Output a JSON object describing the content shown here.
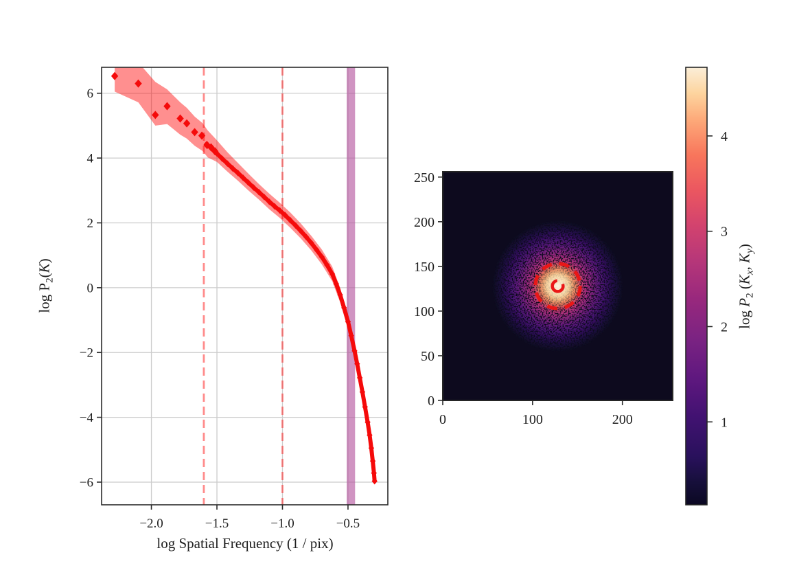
{
  "figure": {
    "background": "#ffffff"
  },
  "chart_data": [
    {
      "panel": "1d-power-spectrum",
      "type": "line",
      "title": "",
      "xlabel": "log Spatial Frequency (1 / pix)",
      "ylabel": "log P2(K)",
      "ylabel_parts": {
        "prefix": "log P",
        "sub": "2",
        "open": "(",
        "variable": "K",
        "close": ")"
      },
      "xlim": [
        -2.38,
        -0.196
      ],
      "ylim": [
        -6.7,
        6.8
      ],
      "x_ticks": [
        -2.0,
        -1.5,
        -1.0,
        -0.5
      ],
      "x_tick_labels": [
        "−2.0",
        "−1.5",
        "−1.0",
        "−0.5"
      ],
      "y_ticks": [
        6,
        4,
        2,
        0,
        -2,
        -4,
        -6
      ],
      "y_tick_labels": [
        "6",
        "4",
        "2",
        "0",
        "−2",
        "−4",
        "−6"
      ],
      "grid": true,
      "grid_color": "#cccccc",
      "line_color": "#f50a0a",
      "marker": "diamond",
      "band_color": "#ff0000",
      "band_opacity": 0.44,
      "vlines": {
        "x": [
          -1.6,
          -1.0
        ],
        "color": "#ff2a2a",
        "opacity": 0.55,
        "style": "dashed"
      },
      "vband": {
        "x0": -0.51,
        "x1": -0.446,
        "color": "#b14d9a",
        "opacity": 0.6
      },
      "scatter": [
        [
          -2.28,
          6.53
        ],
        [
          -2.1,
          6.3
        ],
        [
          -1.97,
          5.33
        ],
        [
          -1.88,
          5.6
        ],
        [
          -1.78,
          5.22
        ],
        [
          -1.73,
          5.07
        ],
        [
          -1.67,
          4.8
        ],
        [
          -1.615,
          4.69
        ],
        [
          -1.575,
          4.4
        ],
        [
          -1.545,
          4.33
        ],
        [
          -1.515,
          4.21
        ]
      ],
      "line": [
        [
          -1.58,
          4.42
        ],
        [
          -1.54,
          4.3
        ],
        [
          -1.5,
          4.14
        ],
        [
          -1.46,
          3.98
        ],
        [
          -1.42,
          3.83
        ],
        [
          -1.38,
          3.68
        ],
        [
          -1.34,
          3.54
        ],
        [
          -1.3,
          3.39
        ],
        [
          -1.26,
          3.24
        ],
        [
          -1.22,
          3.09
        ],
        [
          -1.18,
          2.95
        ],
        [
          -1.14,
          2.8
        ],
        [
          -1.1,
          2.65
        ],
        [
          -1.06,
          2.51
        ],
        [
          -1.02,
          2.38
        ],
        [
          -0.98,
          2.24
        ],
        [
          -0.94,
          2.08
        ],
        [
          -0.9,
          1.92
        ],
        [
          -0.86,
          1.75
        ],
        [
          -0.82,
          1.57
        ],
        [
          -0.78,
          1.38
        ],
        [
          -0.74,
          1.17
        ],
        [
          -0.7,
          0.95
        ],
        [
          -0.66,
          0.7
        ],
        [
          -0.62,
          0.42
        ],
        [
          -0.59,
          0.12
        ],
        [
          -0.56,
          -0.22
        ],
        [
          -0.53,
          -0.62
        ],
        [
          -0.5,
          -1.05
        ],
        [
          -0.475,
          -1.48
        ],
        [
          -0.45,
          -1.95
        ],
        [
          -0.43,
          -2.35
        ],
        [
          -0.41,
          -2.78
        ],
        [
          -0.39,
          -3.22
        ],
        [
          -0.37,
          -3.68
        ],
        [
          -0.35,
          -4.15
        ],
        [
          -0.335,
          -4.55
        ],
        [
          -0.322,
          -4.95
        ],
        [
          -0.311,
          -5.35
        ],
        [
          -0.302,
          -5.72
        ],
        [
          -0.297,
          -5.97
        ]
      ],
      "band": [
        [
          -2.28,
          6.05,
          7.0
        ],
        [
          -2.1,
          5.72,
          6.95
        ],
        [
          -1.97,
          5.0,
          6.35
        ],
        [
          -1.88,
          5.05,
          6.12
        ],
        [
          -1.78,
          4.72,
          5.72
        ],
        [
          -1.73,
          4.6,
          5.55
        ],
        [
          -1.67,
          4.38,
          5.28
        ],
        [
          -1.61,
          4.22,
          5.08
        ],
        [
          -1.57,
          4.02,
          4.85
        ],
        [
          -1.5,
          3.88,
          4.55
        ],
        [
          -1.42,
          3.58,
          4.18
        ],
        [
          -1.34,
          3.3,
          3.85
        ],
        [
          -1.26,
          3.0,
          3.52
        ],
        [
          -1.18,
          2.72,
          3.2
        ],
        [
          -1.1,
          2.42,
          2.9
        ],
        [
          -1.02,
          2.15,
          2.62
        ],
        [
          -0.94,
          1.85,
          2.32
        ],
        [
          -0.86,
          1.52,
          1.98
        ],
        [
          -0.78,
          1.15,
          1.6
        ],
        [
          -0.7,
          0.72,
          1.18
        ],
        [
          -0.62,
          0.2,
          0.65
        ],
        [
          -0.56,
          -0.45,
          0.0
        ],
        [
          -0.5,
          -1.28,
          -0.82
        ],
        [
          -0.45,
          -2.18,
          -1.72
        ],
        [
          -0.41,
          -3.0,
          -2.58
        ],
        [
          -0.37,
          -3.88,
          -3.5
        ],
        [
          -0.335,
          -4.72,
          -4.4
        ],
        [
          -0.311,
          -5.5,
          -5.22
        ],
        [
          -0.297,
          -6.1,
          -5.85
        ]
      ]
    },
    {
      "panel": "2d-power-spectrum",
      "type": "heatmap",
      "xlim": [
        0,
        256
      ],
      "ylim": [
        0,
        256
      ],
      "x_ticks": [
        0,
        100,
        200
      ],
      "x_tick_labels": [
        "0",
        "100",
        "200"
      ],
      "y_ticks": [
        0,
        50,
        100,
        150,
        200,
        250
      ],
      "y_tick_labels": [
        "0",
        "50",
        "100",
        "150",
        "200",
        "250"
      ],
      "center": [
        128,
        128
      ],
      "peak_value": 4.7,
      "background_value": 0.15,
      "colormap": "magma",
      "background_color": "#0d0a1e",
      "contours": {
        "color": "#ea1717",
        "style": "dashed",
        "center": [
          128,
          128
        ],
        "radii": [
          25,
          6
        ]
      }
    }
  ],
  "colorbar": {
    "colormap": "magma",
    "vmin": 0.13,
    "vmax": 4.72,
    "tick_values": [
      1,
      2,
      3,
      4
    ],
    "tick_labels": [
      "1",
      "2",
      "3",
      "4"
    ],
    "label": "log P2 (Kx, Ky)",
    "label_parts": {
      "log": "log ",
      "P": "P",
      "Psub": "2",
      "open": " (",
      "K1": "K",
      "K1sub": "x",
      "comma": ", ",
      "K2": "K",
      "K2sub": "y",
      "close": ")"
    }
  }
}
